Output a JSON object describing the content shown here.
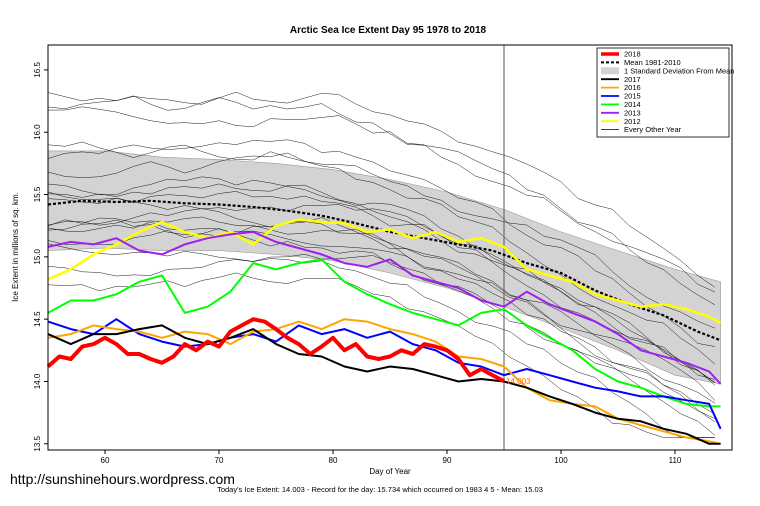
{
  "chart_data": {
    "type": "line",
    "title": "Arctic Sea Ice Extent Day 95 1978 to 2018",
    "xlabel": "Day of Year",
    "ylabel": "Ice Extent in millions of sq. km.",
    "xlim": [
      55,
      115
    ],
    "ylim": [
      13.45,
      16.7
    ],
    "x_ticks": [
      60,
      70,
      80,
      90,
      100,
      110
    ],
    "y_ticks": [
      13.5,
      14.0,
      14.5,
      15.0,
      15.5,
      16.0,
      16.5
    ],
    "marker_day": 95,
    "marker_label": "14.003",
    "legend_position": "top-right",
    "legend": [
      {
        "label": "2018",
        "color": "#ff0000",
        "style": "thick"
      },
      {
        "label": "Mean 1981-2010",
        "color": "#000000",
        "style": "dotted"
      },
      {
        "label": "1 Standard Deviation From Mean",
        "color": "#d3d3d3",
        "style": "band"
      },
      {
        "label": "2017",
        "color": "#000000",
        "style": "solid"
      },
      {
        "label": "2016",
        "color": "#ffa500",
        "style": "solid"
      },
      {
        "label": "2015",
        "color": "#0000ff",
        "style": "solid"
      },
      {
        "label": "2014",
        "color": "#00ff00",
        "style": "solid"
      },
      {
        "label": "2013",
        "color": "#a020f0",
        "style": "solid"
      },
      {
        "label": "2012",
        "color": "#ffff00",
        "style": "solid"
      },
      {
        "label": "Every Other Year",
        "color": "#000000",
        "style": "thin"
      }
    ],
    "std_band": {
      "x": [
        55,
        60,
        65,
        70,
        75,
        80,
        85,
        90,
        95,
        100,
        105,
        110,
        114
      ],
      "upper": [
        15.85,
        15.85,
        15.8,
        15.78,
        15.75,
        15.7,
        15.62,
        15.52,
        15.38,
        15.2,
        15.05,
        14.9,
        14.8
      ],
      "lower": [
        15.05,
        15.07,
        15.05,
        15.05,
        15.02,
        14.97,
        14.87,
        14.75,
        14.6,
        14.43,
        14.25,
        14.05,
        13.98
      ]
    },
    "series": [
      {
        "name": "Mean 1981-2010",
        "color": "#000000",
        "width": 2.2,
        "dash": "3,2",
        "x": [
          55,
          58,
          61,
          64,
          67,
          70,
          73,
          76,
          79,
          82,
          85,
          88,
          91,
          94,
          97,
          100,
          103,
          106,
          109,
          112,
          114
        ],
        "values": [
          15.42,
          15.45,
          15.44,
          15.45,
          15.43,
          15.42,
          15.4,
          15.37,
          15.33,
          15.27,
          15.2,
          15.15,
          15.1,
          15.05,
          14.95,
          14.87,
          14.73,
          14.62,
          14.53,
          14.4,
          14.33
        ]
      },
      {
        "name": "2012",
        "color": "#ffff00",
        "width": 2.5,
        "x": [
          55,
          57,
          59,
          61,
          63,
          65,
          67,
          69,
          71,
          73,
          75,
          77,
          79,
          81,
          83,
          85,
          87,
          89,
          91,
          93,
          95,
          97,
          99,
          101,
          103,
          105,
          107,
          109,
          111,
          113,
          114
        ],
        "values": [
          14.82,
          14.9,
          15.02,
          15.1,
          15.2,
          15.28,
          15.2,
          15.15,
          15.2,
          15.1,
          15.25,
          15.3,
          15.28,
          15.27,
          15.2,
          15.22,
          15.15,
          15.2,
          15.12,
          15.15,
          15.08,
          14.9,
          14.85,
          14.8,
          14.7,
          14.65,
          14.6,
          14.62,
          14.58,
          14.52,
          14.47
        ]
      },
      {
        "name": "2013",
        "color": "#a020f0",
        "width": 2,
        "x": [
          55,
          57,
          59,
          61,
          63,
          65,
          67,
          69,
          71,
          73,
          75,
          77,
          79,
          81,
          83,
          85,
          87,
          89,
          91,
          93,
          95,
          97,
          99,
          101,
          103,
          105,
          107,
          109,
          111,
          113,
          114
        ],
        "values": [
          15.08,
          15.12,
          15.1,
          15.15,
          15.05,
          15.02,
          15.1,
          15.15,
          15.18,
          15.2,
          15.12,
          15.07,
          15.02,
          14.95,
          14.92,
          14.98,
          14.85,
          14.8,
          14.75,
          14.65,
          14.6,
          14.72,
          14.62,
          14.55,
          14.48,
          14.38,
          14.25,
          14.2,
          14.15,
          14.08,
          13.98
        ]
      },
      {
        "name": "2014",
        "color": "#00ff00",
        "width": 2,
        "x": [
          55,
          57,
          59,
          61,
          63,
          65,
          67,
          69,
          71,
          73,
          75,
          77,
          79,
          81,
          83,
          85,
          87,
          89,
          91,
          93,
          95,
          97,
          99,
          101,
          103,
          105,
          107,
          109,
          111,
          113,
          114
        ],
        "values": [
          14.55,
          14.65,
          14.65,
          14.7,
          14.8,
          14.85,
          14.55,
          14.6,
          14.72,
          14.95,
          14.9,
          14.95,
          14.98,
          14.8,
          14.7,
          14.62,
          14.55,
          14.5,
          14.45,
          14.55,
          14.58,
          14.45,
          14.35,
          14.25,
          14.1,
          14.0,
          13.95,
          13.88,
          13.82,
          13.8,
          13.8
        ]
      },
      {
        "name": "2015",
        "color": "#0000ff",
        "width": 2,
        "x": [
          55,
          57,
          59,
          61,
          63,
          65,
          67,
          69,
          71,
          73,
          75,
          77,
          79,
          81,
          83,
          85,
          87,
          89,
          91,
          93,
          95,
          97,
          99,
          101,
          103,
          105,
          107,
          109,
          111,
          113,
          114
        ],
        "values": [
          14.48,
          14.42,
          14.38,
          14.5,
          14.38,
          14.32,
          14.28,
          14.3,
          14.35,
          14.38,
          14.32,
          14.45,
          14.38,
          14.42,
          14.35,
          14.4,
          14.3,
          14.25,
          14.15,
          14.12,
          14.05,
          14.1,
          14.05,
          14.0,
          13.95,
          13.92,
          13.88,
          13.88,
          13.85,
          13.82,
          13.62
        ]
      },
      {
        "name": "2016",
        "color": "#ffa500",
        "width": 2,
        "x": [
          55,
          57,
          59,
          61,
          63,
          65,
          67,
          69,
          71,
          73,
          75,
          77,
          79,
          81,
          83,
          85,
          87,
          89,
          91,
          93,
          95,
          97,
          99,
          101,
          103,
          105,
          107,
          109,
          111,
          113,
          114
        ],
        "values": [
          14.35,
          14.38,
          14.45,
          14.42,
          14.4,
          14.35,
          14.4,
          14.38,
          14.3,
          14.4,
          14.42,
          14.48,
          14.42,
          14.5,
          14.48,
          14.42,
          14.38,
          14.32,
          14.2,
          14.18,
          14.12,
          13.95,
          13.85,
          13.82,
          13.8,
          13.7,
          13.65,
          13.6,
          13.55,
          13.52,
          13.5
        ]
      },
      {
        "name": "2017",
        "color": "#000000",
        "width": 2,
        "x": [
          55,
          57,
          59,
          61,
          63,
          65,
          67,
          69,
          71,
          73,
          75,
          77,
          79,
          81,
          83,
          85,
          87,
          89,
          91,
          93,
          95,
          97,
          99,
          101,
          103,
          105,
          107,
          109,
          111,
          113,
          114
        ],
        "values": [
          14.38,
          14.3,
          14.38,
          14.38,
          14.42,
          14.45,
          14.35,
          14.3,
          14.35,
          14.42,
          14.3,
          14.22,
          14.2,
          14.12,
          14.08,
          14.12,
          14.1,
          14.05,
          14.0,
          14.02,
          14.0,
          13.95,
          13.88,
          13.82,
          13.75,
          13.7,
          13.68,
          13.62,
          13.58,
          13.5,
          13.5
        ]
      },
      {
        "name": "2018",
        "color": "#ff0000",
        "width": 4,
        "x": [
          55,
          56,
          57,
          58,
          59,
          60,
          61,
          62,
          63,
          64,
          65,
          66,
          67,
          68,
          69,
          70,
          71,
          72,
          73,
          74,
          75,
          76,
          77,
          78,
          79,
          80,
          81,
          82,
          83,
          84,
          85,
          86,
          87,
          88,
          89,
          90,
          91,
          92,
          93,
          94,
          95
        ],
        "values": [
          14.12,
          14.2,
          14.18,
          14.28,
          14.3,
          14.35,
          14.3,
          14.22,
          14.22,
          14.18,
          14.15,
          14.2,
          14.3,
          14.25,
          14.32,
          14.28,
          14.4,
          14.45,
          14.5,
          14.48,
          14.42,
          14.35,
          14.3,
          14.22,
          14.28,
          14.35,
          14.25,
          14.3,
          14.2,
          14.18,
          14.2,
          14.25,
          14.22,
          14.3,
          14.28,
          14.25,
          14.18,
          14.05,
          14.1,
          14.05,
          14.003
        ]
      }
    ]
  },
  "watermark": "http://sunshinehours.wordpress.com",
  "footnote": "Today's Ice Extent: 14.003  - Record for the day: 15.734 which occurred on 1983 4 5  - Mean: 15.03"
}
